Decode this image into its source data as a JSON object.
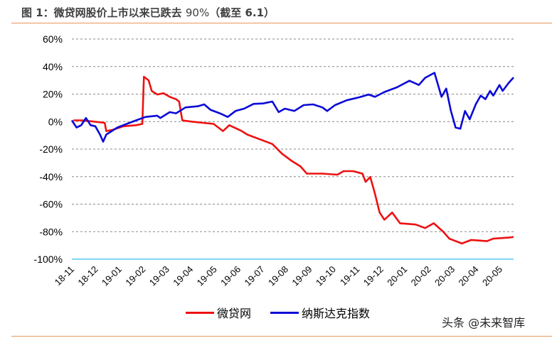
{
  "title": {
    "prefix": "图 1：微贷网股价上市以来已跌去 ",
    "num": "90%",
    "suffix": "（截至 6.1）"
  },
  "watermark": "头条 @未来智库",
  "colors": {
    "weidai": "#ee1111",
    "nasdaq": "#0a0ad8",
    "baseline": "#33bde6",
    "rule": "#e8955a",
    "grid": "#888888"
  },
  "chart_data": {
    "type": "line",
    "title": "",
    "xlabel": "",
    "ylabel": "",
    "ylim": [
      -100,
      60
    ],
    "yticks": [
      60,
      40,
      20,
      0,
      -20,
      -40,
      -60,
      -80,
      -100
    ],
    "ytick_labels": [
      "60%",
      "40%",
      "20%",
      "0%",
      "-20%",
      "-40%",
      "-60%",
      "-80%",
      "-100%"
    ],
    "xlim": [
      "2018-11-15",
      "2020-06-01"
    ],
    "xtick_labels": [
      "18-11",
      "18-12",
      "19-01",
      "19-02",
      "19-03",
      "19-04",
      "19-05",
      "19-06",
      "19-07",
      "19-08",
      "19-09",
      "19-10",
      "19-11",
      "19-12",
      "20-01",
      "20-02",
      "20-03",
      "20-04",
      "20-05"
    ],
    "grid": "horizontal dashed",
    "legend_position": "bottom",
    "series": [
      {
        "name": "微贷网",
        "color": "#ee1111",
        "x": [
          "2018-11-17",
          "2018-11-29",
          "2018-12-27",
          "2018-12-29",
          "2019-01-06",
          "2019-01-20",
          "2019-02-05",
          "2019-02-13",
          "2019-02-15",
          "2019-02-21",
          "2019-02-25",
          "2019-03-04",
          "2019-03-12",
          "2019-03-20",
          "2019-03-28",
          "2019-04-01",
          "2019-04-05",
          "2019-04-17",
          "2019-05-15",
          "2019-05-27",
          "2019-06-04",
          "2019-06-20",
          "2019-06-27",
          "2019-07-13",
          "2019-07-29",
          "2019-08-10",
          "2019-08-22",
          "2019-09-03",
          "2019-09-11",
          "2019-10-01",
          "2019-10-20",
          "2019-10-28",
          "2019-11-09",
          "2019-11-21",
          "2019-11-25",
          "2019-12-01",
          "2019-12-07",
          "2019-12-13",
          "2019-12-19",
          "2019-12-29",
          "2020-01-08",
          "2020-01-28",
          "2020-02-09",
          "2020-02-20",
          "2020-03-03",
          "2020-03-11",
          "2020-03-27",
          "2020-04-08",
          "2020-04-28",
          "2020-05-06",
          "2020-05-26",
          "2020-06-01"
        ],
        "y": [
          0.9,
          0.9,
          -0.9,
          -6.9,
          -6,
          -3.4,
          -2.6,
          -1.7,
          32.6,
          30,
          22.3,
          19.7,
          20.6,
          18,
          16.3,
          14.6,
          0.9,
          0,
          -1.7,
          -6.9,
          -2.6,
          -6.9,
          -9.4,
          -12.9,
          -16.3,
          -23.2,
          -28.3,
          -32.6,
          -37.8,
          -37.8,
          -38.6,
          -36,
          -36,
          -37.8,
          -43.8,
          -40.3,
          -52.4,
          -66.1,
          -71.3,
          -66.1,
          -73.9,
          -74.8,
          -77.4,
          -73.9,
          -79.9,
          -85.1,
          -88.6,
          -86,
          -86.9,
          -85.1,
          -84.3,
          -83.8
        ]
      },
      {
        "name": "纳斯达克指数",
        "color": "#0a0ad8",
        "x": [
          "2018-11-15",
          "2018-11-21",
          "2018-11-27",
          "2018-12-03",
          "2018-12-09",
          "2018-12-15",
          "2018-12-21",
          "2018-12-25",
          "2018-12-29",
          "2019-01-12",
          "2019-01-24",
          "2019-02-05",
          "2019-02-17",
          "2019-03-04",
          "2019-03-08",
          "2019-03-20",
          "2019-03-28",
          "2019-04-09",
          "2019-04-25",
          "2019-05-03",
          "2019-05-11",
          "2019-05-23",
          "2019-06-02",
          "2019-06-12",
          "2019-06-23",
          "2019-07-05",
          "2019-07-17",
          "2019-07-29",
          "2019-08-06",
          "2019-08-14",
          "2019-08-26",
          "2019-09-07",
          "2019-09-19",
          "2019-10-01",
          "2019-10-07",
          "2019-10-17",
          "2019-11-01",
          "2019-11-17",
          "2019-11-29",
          "2019-12-07",
          "2019-12-19",
          "2020-01-04",
          "2020-01-20",
          "2020-02-01",
          "2020-02-09",
          "2020-02-21",
          "2020-03-01",
          "2020-03-07",
          "2020-03-13",
          "2020-03-19",
          "2020-03-25",
          "2020-03-31",
          "2020-04-06",
          "2020-04-14",
          "2020-04-20",
          "2020-04-26",
          "2020-05-02",
          "2020-05-06",
          "2020-05-14",
          "2020-05-18",
          "2020-05-26",
          "2020-06-01"
        ],
        "y": [
          0.9,
          -4.3,
          -2.6,
          2.6,
          -2.6,
          -3.4,
          -9.4,
          -14.6,
          -9.4,
          -4.3,
          -1.7,
          0.9,
          3.4,
          4.3,
          2.6,
          6.9,
          6,
          10.3,
          11.2,
          12.5,
          8.6,
          6,
          3.4,
          7.7,
          9.4,
          12.9,
          13.2,
          14.6,
          6.9,
          9.4,
          7.7,
          12,
          12.5,
          10.3,
          7.7,
          12,
          15.5,
          17.7,
          19.7,
          18,
          21.5,
          24.9,
          29.7,
          26.6,
          31.8,
          35.5,
          18,
          24,
          7.7,
          -4.3,
          -5.2,
          7.7,
          1.7,
          12.9,
          18.9,
          16.3,
          22.3,
          18.9,
          26.6,
          22.3,
          28.3,
          32.1
        ]
      }
    ]
  }
}
